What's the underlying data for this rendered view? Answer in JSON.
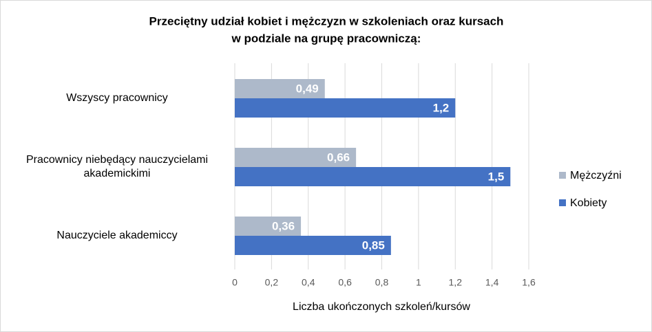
{
  "chart_data": {
    "type": "hbar",
    "title": [
      "Przeciętny udział kobiet i mężczyzn w szkoleniach oraz kursach",
      "w podziale na grupę pracowniczą:"
    ],
    "x_label": "Liczba ukończonych szkoleń/kursów",
    "categories": [
      "Wszyscy pracownicy",
      "Pracownicy niebędący nauczycielami akademickimi",
      "Nauczyciele akademiccy"
    ],
    "series": [
      {
        "name": "Mężczyźni",
        "color": "#adb9ca",
        "values": [
          0.49,
          0.66,
          0.36
        ],
        "value_labels": [
          "0,49",
          "0,66",
          "0,36"
        ]
      },
      {
        "name": "Kobiety",
        "color": "#4472c4",
        "values": [
          1.2,
          1.5,
          0.85
        ],
        "value_labels": [
          "1,2",
          "1,5",
          "0,85"
        ]
      }
    ],
    "xlim": [
      0,
      1.6
    ],
    "xticks": [
      0,
      {
        "value": 0.2,
        "label": "0,2"
      },
      {
        "value": 0.4,
        "label": "0,4"
      },
      {
        "value": 0.6,
        "label": "0,6"
      },
      {
        "value": 0.8,
        "label": "0,8"
      },
      1,
      {
        "value": 1.2,
        "label": "1,2"
      },
      {
        "value": 1.4,
        "label": "1,4"
      },
      {
        "value": 1.6,
        "label": "1,6"
      }
    ],
    "grid": true,
    "legend": "right"
  }
}
